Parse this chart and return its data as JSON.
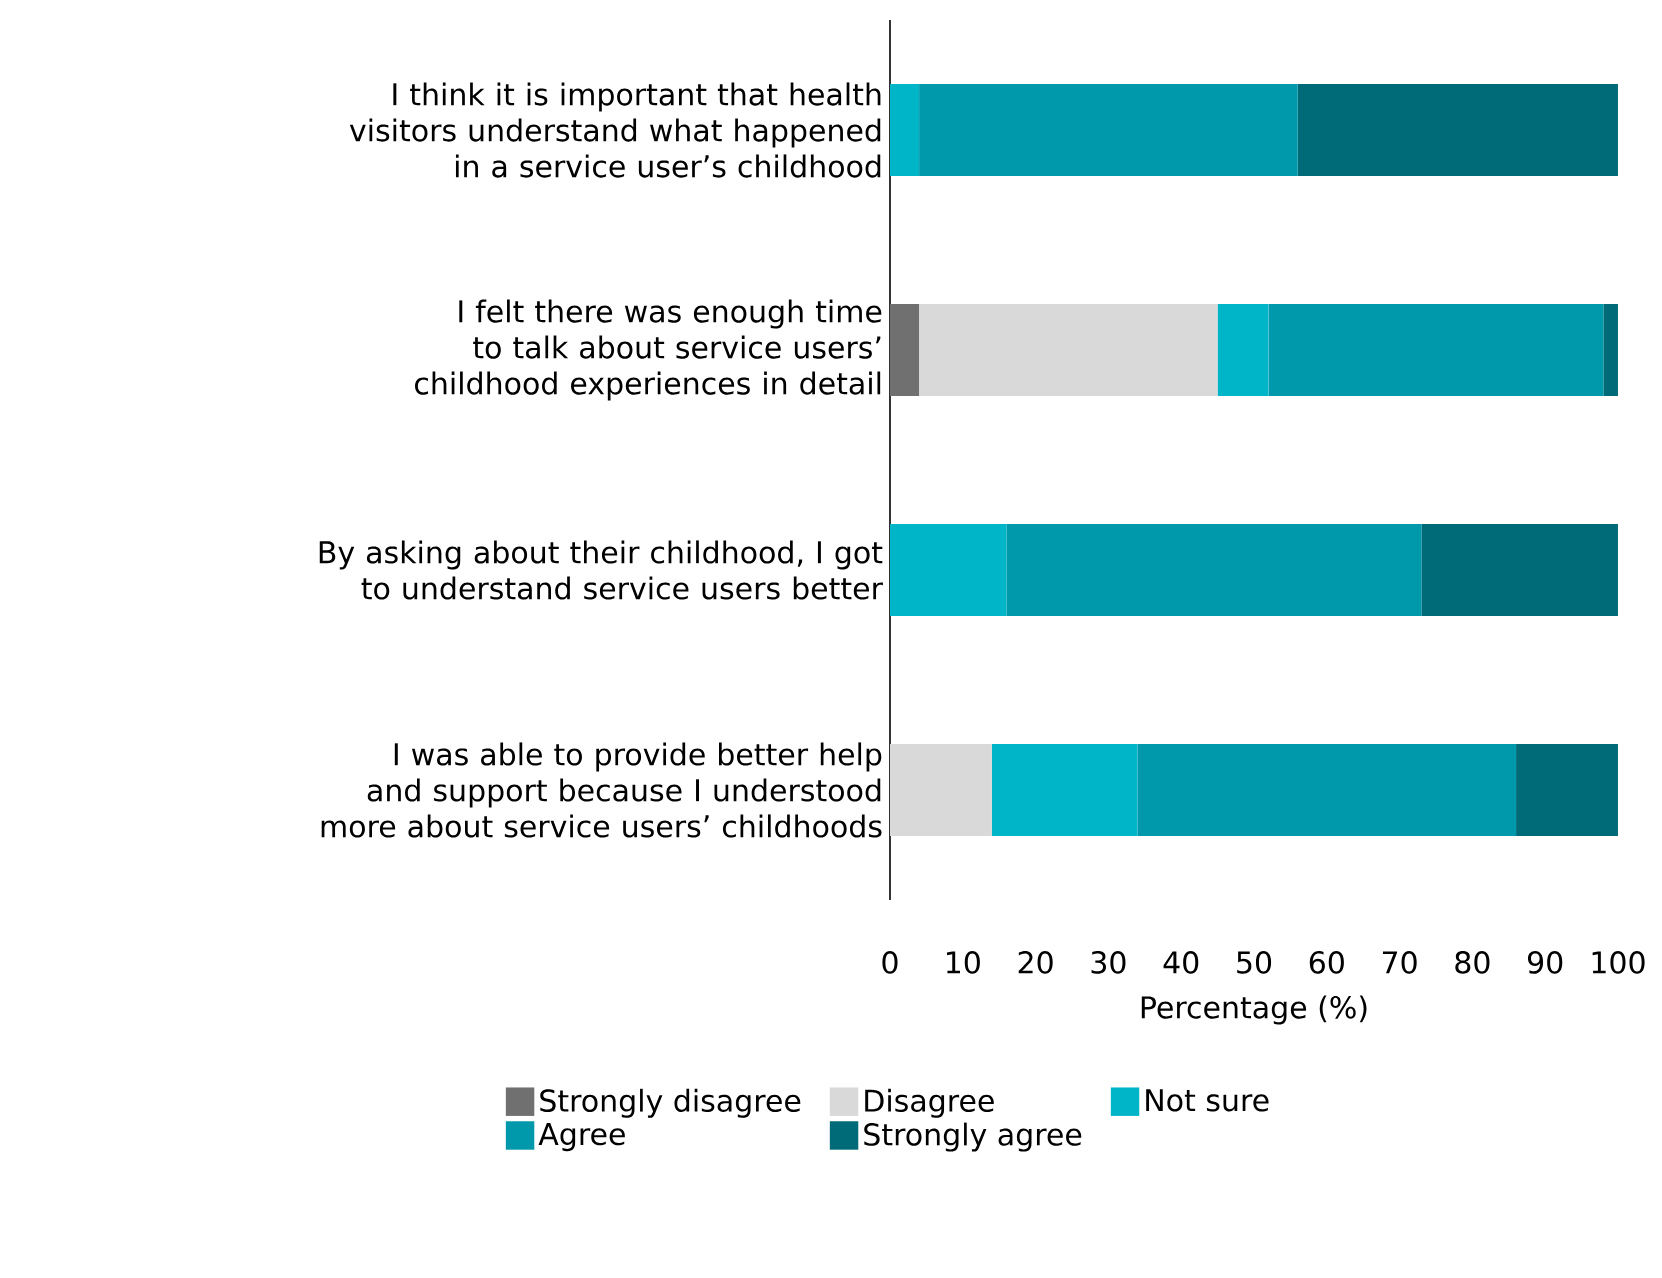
{
  "chart_data": {
    "type": "bar",
    "orientation": "horizontal",
    "stacked": true,
    "xlabel": "Percentage (%)",
    "categories": [
      "I think it is important that health visitors understand what happened in a service user’s childhood",
      "I felt there was enough time to talk about service users’ childhood experiences in detail",
      "By asking about their childhood, I got to understand service users better",
      "I was able to provide better help and support because I understood more about service users’ childhoods"
    ],
    "series": [
      {
        "name": "Strongly disagree",
        "color": "#707070",
        "values": [
          0,
          4,
          0,
          0
        ]
      },
      {
        "name": "Disagree",
        "color": "#d9d9d9",
        "values": [
          0,
          41,
          0,
          14
        ]
      },
      {
        "name": "Not sure",
        "color": "#00b5c8",
        "values": [
          4,
          7,
          16,
          20
        ]
      },
      {
        "name": "Agree",
        "color": "#0098ab",
        "values": [
          52,
          46,
          57,
          52
        ]
      },
      {
        "name": "Strongly agree",
        "color": "#006b78",
        "values": [
          44,
          2,
          27,
          14
        ]
      }
    ],
    "xlim": [
      0,
      100
    ],
    "xticks": [
      0,
      10,
      20,
      30,
      40,
      50,
      60,
      70,
      80,
      90,
      100
    ],
    "legend": "bottom"
  }
}
